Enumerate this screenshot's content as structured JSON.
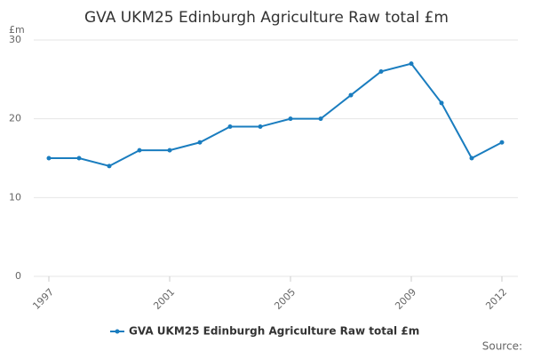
{
  "chart_data": {
    "type": "line",
    "title": "GVA UKM25 Edinburgh Agriculture Raw total £m",
    "y_axis_label": "£m",
    "source": "Source:",
    "x": [
      1997,
      1998,
      1999,
      2000,
      2001,
      2002,
      2003,
      2004,
      2005,
      2006,
      2007,
      2008,
      2009,
      2010,
      2011,
      2012
    ],
    "series": [
      {
        "name": "GVA UKM25 Edinburgh Agriculture Raw total £m",
        "color": "#1a7dbf",
        "values": [
          15,
          15,
          14,
          16,
          16,
          17,
          19,
          19,
          20,
          20,
          23,
          26,
          27,
          22,
          15,
          17
        ]
      }
    ],
    "xlim": [
      1997,
      2012
    ],
    "xticks": [
      1997,
      2001,
      2005,
      2009,
      2012
    ],
    "ylim": [
      0,
      30
    ],
    "yticks": [
      0,
      10,
      20,
      30
    ],
    "grid": true
  }
}
